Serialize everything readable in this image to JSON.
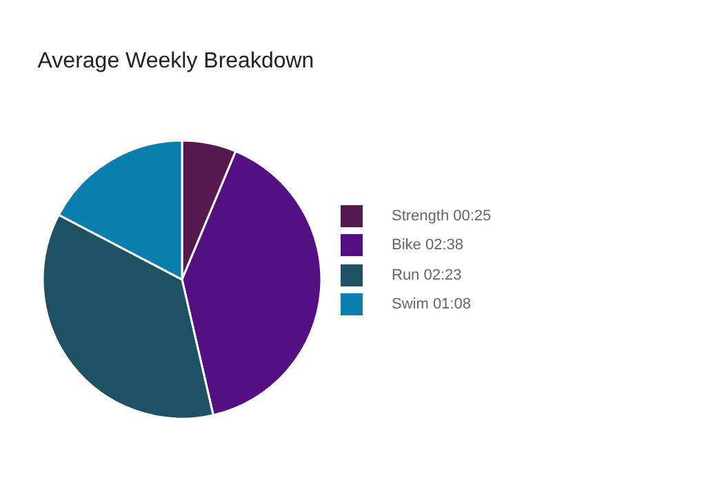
{
  "chart_data": {
    "type": "pie",
    "title": "Average Weekly Breakdown",
    "categories": [
      "Strength 00:25",
      "Bike 02:38",
      "Run 02:23",
      "Swim 01:08"
    ],
    "values": [
      6.3,
      40.1,
      36.3,
      17.3
    ],
    "colors": [
      "#561a50",
      "#541082",
      "#1d5163",
      "#0a7fae"
    ],
    "legend": "right"
  }
}
